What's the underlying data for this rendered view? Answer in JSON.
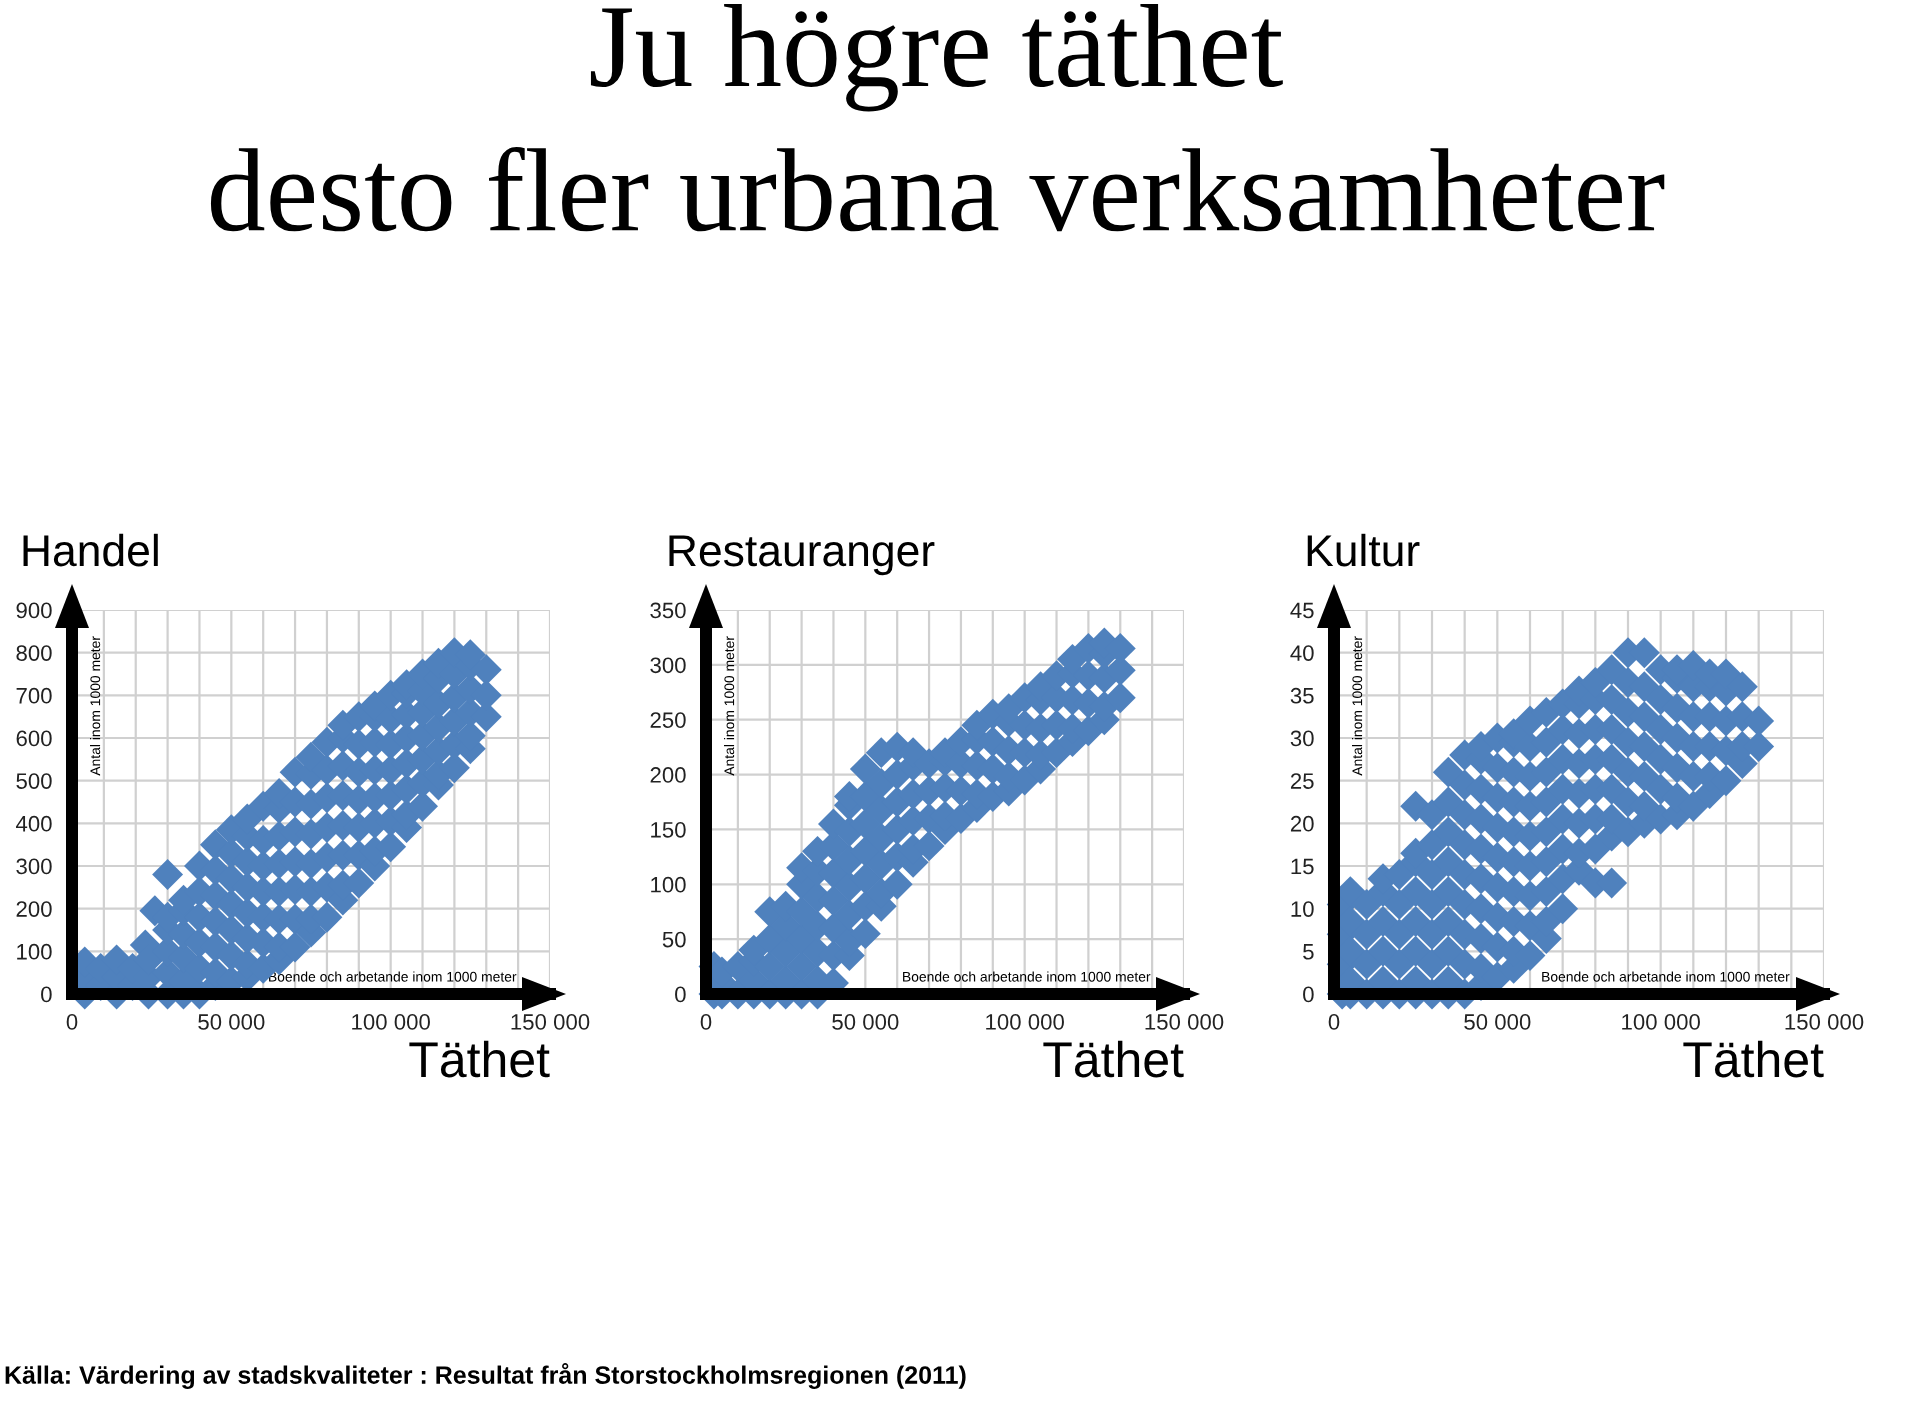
{
  "chart_data": [
    {
      "type": "scatter",
      "title": "Handel",
      "xlabel": "Boende och arbetande inom 1000 meter",
      "ylabel": "Antal inom 1000 meter",
      "annotations": [
        "Ju högre täthet\ndesto fler urbana verksamheter",
        "Täthet",
        "Källa: Värdering av stadskvaliteter : Resultat från Storstockholmsregionen (2011)"
      ],
      "marker": "diamond",
      "grid": true,
      "xlim": [
        0,
        150000
      ],
      "ylim": [
        0,
        900
      ],
      "xticks": [
        0,
        {
          "value": 10000,
          "label": null
        },
        {
          "value": 20000,
          "label": null
        },
        {
          "value": 30000,
          "label": null
        },
        {
          "value": 40000,
          "label": null
        },
        {
          "value": 50000,
          "label": "50 000"
        },
        {
          "value": 60000,
          "label": null
        },
        {
          "value": 70000,
          "label": null
        },
        {
          "value": 80000,
          "label": null
        },
        {
          "value": 90000,
          "label": null
        },
        {
          "value": 100000,
          "label": "100 000"
        },
        {
          "value": 110000,
          "label": null
        },
        {
          "value": 120000,
          "label": null
        },
        {
          "value": 130000,
          "label": null
        },
        {
          "value": 140000,
          "label": null
        },
        {
          "value": 150000,
          "label": "150 000"
        }
      ],
      "yticks": [
        0,
        100,
        200,
        300,
        400,
        500,
        600,
        700,
        800,
        900
      ],
      "series": [
        {
          "color": "#4f81bd",
          "x": [
            4000,
            4000,
            4000,
            9000,
            9000,
            14000,
            14000,
            14000,
            19000,
            19000,
            23000,
            24000,
            24000,
            24000,
            26000,
            30000,
            30000,
            30000,
            30000,
            30000,
            30000,
            35000,
            35000,
            35000,
            35000,
            35000,
            35000,
            40000,
            40000,
            40000,
            40000,
            40000,
            40000,
            45000,
            45000,
            45000,
            45000,
            45000,
            45000,
            45000,
            50000,
            50000,
            50000,
            50000,
            50000,
            50000,
            50000,
            55000,
            55000,
            55000,
            55000,
            55000,
            55000,
            55000,
            55000,
            60000,
            60000,
            60000,
            60000,
            60000,
            60000,
            60000,
            65000,
            65000,
            65000,
            65000,
            65000,
            65000,
            65000,
            65000,
            70000,
            70000,
            70000,
            70000,
            70000,
            70000,
            70000,
            75000,
            75000,
            75000,
            75000,
            75000,
            75000,
            75000,
            75000,
            80000,
            80000,
            80000,
            80000,
            80000,
            80000,
            80000,
            85000,
            85000,
            85000,
            85000,
            85000,
            85000,
            85000,
            85000,
            90000,
            90000,
            90000,
            90000,
            90000,
            90000,
            90000,
            95000,
            95000,
            95000,
            95000,
            95000,
            95000,
            95000,
            95000,
            100000,
            100000,
            100000,
            100000,
            100000,
            100000,
            100000,
            105000,
            105000,
            105000,
            105000,
            105000,
            105000,
            105000,
            105000,
            110000,
            110000,
            110000,
            110000,
            110000,
            110000,
            110000,
            115000,
            115000,
            115000,
            115000,
            115000,
            115000,
            115000,
            120000,
            120000,
            120000,
            120000,
            120000,
            120000,
            125000,
            125000,
            125000,
            125000,
            125000,
            125000,
            130000,
            130000,
            130000
          ],
          "values": [
            0,
            40,
            75,
            20,
            60,
            0,
            40,
            80,
            20,
            60,
            115,
            0,
            40,
            80,
            195,
            0,
            50,
            100,
            150,
            180,
            280,
            0,
            30,
            85,
            140,
            195,
            220,
            0,
            60,
            120,
            180,
            240,
            300,
            20,
            50,
            110,
            170,
            230,
            290,
            350,
            30,
            90,
            150,
            210,
            270,
            330,
            385,
            40,
            70,
            130,
            190,
            250,
            310,
            370,
            410,
            60,
            120,
            180,
            240,
            300,
            360,
            440,
            80,
            110,
            175,
            240,
            305,
            370,
            435,
            470,
            110,
            175,
            245,
            310,
            380,
            450,
            520,
            145,
            175,
            240,
            305,
            375,
            445,
            515,
            555,
            180,
            250,
            320,
            390,
            460,
            525,
            590,
            220,
            255,
            325,
            395,
            465,
            535,
            600,
            630,
            260,
            325,
            390,
            455,
            520,
            585,
            650,
            300,
            335,
            400,
            460,
            525,
            590,
            650,
            675,
            345,
            405,
            465,
            525,
            585,
            645,
            700,
            390,
            420,
            480,
            540,
            600,
            655,
            705,
            725,
            440,
            495,
            550,
            605,
            660,
            710,
            750,
            490,
            515,
            570,
            625,
            680,
            740,
            775,
            530,
            585,
            640,
            695,
            750,
            800,
            575,
            605,
            660,
            715,
            770,
            795,
            650,
            700,
            760
          ]
        }
      ]
    },
    {
      "type": "scatter",
      "title": "Restauranger",
      "xlabel": "Boende och arbetande inom 1000 meter",
      "ylabel": "Antal inom 1000 meter",
      "annotations": [
        "Täthet"
      ],
      "marker": "diamond",
      "grid": true,
      "xlim": [
        0,
        150000
      ],
      "ylim": [
        0,
        350
      ],
      "xticks": [
        0,
        {
          "value": 10000,
          "label": null
        },
        {
          "value": 20000,
          "label": null
        },
        {
          "value": 30000,
          "label": null
        },
        {
          "value": 40000,
          "label": null
        },
        {
          "value": 50000,
          "label": "50 000"
        },
        {
          "value": 60000,
          "label": null
        },
        {
          "value": 70000,
          "label": null
        },
        {
          "value": 80000,
          "label": null
        },
        {
          "value": 90000,
          "label": null
        },
        {
          "value": 100000,
          "label": "100 000"
        },
        {
          "value": 110000,
          "label": null
        },
        {
          "value": 120000,
          "label": null
        },
        {
          "value": 130000,
          "label": null
        },
        {
          "value": 140000,
          "label": null
        },
        {
          "value": 150000,
          "label": "150 000"
        }
      ],
      "yticks": [
        0,
        50,
        100,
        150,
        200,
        250,
        300,
        350
      ],
      "series": [
        {
          "color": "#4f81bd",
          "x": [
            2500,
            2500,
            5000,
            5000,
            5000,
            10000,
            10000,
            15000,
            15000,
            15000,
            15000,
            20000,
            20000,
            20000,
            20000,
            25000,
            25000,
            25000,
            25000,
            25000,
            30000,
            30000,
            30000,
            30000,
            30000,
            30000,
            35000,
            35000,
            35000,
            35000,
            35000,
            35000,
            35000,
            40000,
            40000,
            40000,
            40000,
            40000,
            40000,
            40000,
            45000,
            45000,
            45000,
            45000,
            45000,
            45000,
            45000,
            45000,
            50000,
            50000,
            50000,
            50000,
            50000,
            50000,
            50000,
            55000,
            55000,
            55000,
            55000,
            55000,
            55000,
            55000,
            60000,
            60000,
            60000,
            60000,
            60000,
            60000,
            65000,
            65000,
            65000,
            65000,
            65000,
            65000,
            70000,
            70000,
            70000,
            70000,
            75000,
            75000,
            75000,
            75000,
            75000,
            80000,
            80000,
            80000,
            80000,
            85000,
            85000,
            85000,
            85000,
            85000,
            90000,
            90000,
            90000,
            90000,
            95000,
            95000,
            95000,
            95000,
            95000,
            100000,
            100000,
            100000,
            100000,
            105000,
            105000,
            105000,
            105000,
            105000,
            110000,
            110000,
            110000,
            110000,
            115000,
            115000,
            115000,
            115000,
            115000,
            120000,
            120000,
            120000,
            120000,
            125000,
            125000,
            125000,
            125000,
            125000,
            130000,
            130000,
            130000
          ],
          "values": [
            0,
            25,
            0,
            10,
            20,
            0,
            25,
            0,
            12,
            30,
            40,
            0,
            25,
            50,
            75,
            0,
            12,
            38,
            62,
            80,
            0,
            25,
            50,
            75,
            100,
            115,
            0,
            12,
            38,
            62,
            88,
            112,
            130,
            10,
            35,
            60,
            85,
            110,
            135,
            155,
            35,
            48,
            72,
            98,
            122,
            148,
            172,
            180,
            55,
            80,
            105,
            130,
            155,
            180,
            205,
            80,
            92,
            118,
            142,
            168,
            192,
            220,
            100,
            125,
            150,
            175,
            200,
            225,
            120,
            132,
            158,
            182,
            208,
            220,
            135,
            160,
            185,
            210,
            150,
            162,
            188,
            212,
            220,
            160,
            185,
            210,
            230,
            170,
            182,
            208,
            232,
            245,
            180,
            205,
            230,
            255,
            185,
            198,
            222,
            248,
            260,
            195,
            220,
            245,
            270,
            205,
            218,
            242,
            268,
            280,
            220,
            245,
            270,
            290,
            230,
            242,
            268,
            292,
            305,
            240,
            265,
            290,
            315,
            250,
            262,
            288,
            310,
            320,
            270,
            295,
            315
          ]
        }
      ]
    },
    {
      "type": "scatter",
      "title": "Kultur",
      "xlabel": "Boende och arbetande inom 1000 meter",
      "ylabel": "Antal inom 1000 meter",
      "annotations": [
        "Täthet"
      ],
      "marker": "diamond",
      "grid": true,
      "xlim": [
        0,
        150000
      ],
      "ylim": [
        0,
        45
      ],
      "xticks": [
        0,
        {
          "value": 10000,
          "label": null
        },
        {
          "value": 20000,
          "label": null
        },
        {
          "value": 30000,
          "label": null
        },
        {
          "value": 40000,
          "label": null
        },
        {
          "value": 50000,
          "label": "50 000"
        },
        {
          "value": 60000,
          "label": null
        },
        {
          "value": 70000,
          "label": null
        },
        {
          "value": 80000,
          "label": null
        },
        {
          "value": 90000,
          "label": null
        },
        {
          "value": 100000,
          "label": "100 000"
        },
        {
          "value": 110000,
          "label": null
        },
        {
          "value": 120000,
          "label": null
        },
        {
          "value": 130000,
          "label": null
        },
        {
          "value": 140000,
          "label": null
        },
        {
          "value": 150000,
          "label": "150 000"
        }
      ],
      "yticks": [
        0,
        5,
        10,
        15,
        20,
        25,
        30,
        35,
        40,
        45
      ],
      "series": [
        {
          "color": "#4f81bd",
          "x": [
            2500,
            2500,
            2500,
            2500,
            5000,
            5000,
            5000,
            5000,
            5000,
            10000,
            10000,
            10000,
            10000,
            15000,
            15000,
            15000,
            15000,
            15000,
            15000,
            20000,
            20000,
            20000,
            20000,
            20000,
            25000,
            25000,
            25000,
            25000,
            25000,
            25000,
            25000,
            25000,
            30000,
            30000,
            30000,
            30000,
            30000,
            30000,
            30000,
            35000,
            35000,
            35000,
            35000,
            35000,
            35000,
            35000,
            35000,
            35000,
            40000,
            40000,
            40000,
            40000,
            40000,
            40000,
            40000,
            40000,
            40000,
            45000,
            45000,
            45000,
            45000,
            45000,
            45000,
            45000,
            45000,
            45000,
            45000,
            50000,
            50000,
            50000,
            50000,
            50000,
            50000,
            50000,
            50000,
            50000,
            55000,
            55000,
            55000,
            55000,
            55000,
            55000,
            55000,
            55000,
            55000,
            55000,
            60000,
            60000,
            60000,
            60000,
            60000,
            60000,
            60000,
            60000,
            60000,
            65000,
            65000,
            65000,
            65000,
            65000,
            65000,
            65000,
            65000,
            65000,
            70000,
            70000,
            70000,
            70000,
            70000,
            70000,
            70000,
            70000,
            75000,
            75000,
            75000,
            75000,
            75000,
            75000,
            75000,
            75000,
            80000,
            80000,
            80000,
            80000,
            80000,
            80000,
            80000,
            80000,
            85000,
            85000,
            85000,
            85000,
            85000,
            85000,
            85000,
            85000,
            90000,
            90000,
            90000,
            90000,
            90000,
            90000,
            90000,
            95000,
            95000,
            95000,
            95000,
            95000,
            95000,
            95000,
            100000,
            100000,
            100000,
            100000,
            100000,
            100000,
            105000,
            105000,
            105000,
            105000,
            105000,
            105000,
            105000,
            110000,
            110000,
            110000,
            110000,
            110000,
            110000,
            115000,
            115000,
            115000,
            115000,
            115000,
            115000,
            120000,
            120000,
            120000,
            120000,
            120000,
            125000,
            125000,
            125000,
            125000,
            130000,
            130000
          ],
          "values": [
            0,
            3.5,
            7,
            10.5,
            0,
            1.5,
            5,
            8.5,
            12,
            0,
            3.5,
            7,
            10.5,
            0,
            1.5,
            5,
            8.5,
            12,
            13.5,
            0,
            3.5,
            7,
            10.5,
            14,
            0,
            1.5,
            5,
            8.5,
            12,
            15.5,
            16.5,
            22,
            0,
            3.5,
            7,
            10.5,
            14,
            17.5,
            21,
            0,
            1.5,
            5,
            8.5,
            12,
            15.5,
            19,
            22.5,
            26,
            0,
            3.5,
            7,
            10.5,
            14,
            17.5,
            21,
            24.5,
            28,
            1,
            3,
            6.5,
            10,
            13.5,
            17,
            20.5,
            24,
            27.5,
            29,
            2,
            5.5,
            9,
            12.5,
            16,
            19.5,
            23,
            26.5,
            30,
            3,
            5,
            8.5,
            12,
            15.5,
            19,
            22.5,
            26,
            29.5,
            30.5,
            4.5,
            8,
            11.5,
            15,
            18.5,
            22,
            25.5,
            29,
            32,
            6.5,
            8.5,
            12,
            15.5,
            19,
            22.5,
            26,
            29.5,
            33,
            10,
            13.5,
            17,
            20.5,
            24,
            27.5,
            31,
            34,
            14.5,
            16.5,
            20,
            23.5,
            27,
            30.5,
            34,
            35.5,
            13,
            17,
            20.5,
            24,
            27.5,
            31,
            34.5,
            36.5,
            13,
            18.5,
            20.5,
            24,
            27.5,
            31,
            34.5,
            38,
            19,
            22.5,
            26,
            29.5,
            33,
            36.5,
            40,
            20,
            22,
            25.5,
            29,
            32.5,
            36,
            40,
            20.5,
            24,
            27.5,
            31,
            34.5,
            38,
            21,
            23,
            26.5,
            30,
            33.5,
            37,
            38,
            22,
            25.5,
            29,
            32.5,
            36,
            38.5,
            23.5,
            25.5,
            29,
            32.5,
            36,
            37.5,
            25,
            28.5,
            32,
            35.5,
            37.5,
            27,
            29,
            32.5,
            36,
            29,
            32
          ]
        }
      ]
    }
  ]
}
